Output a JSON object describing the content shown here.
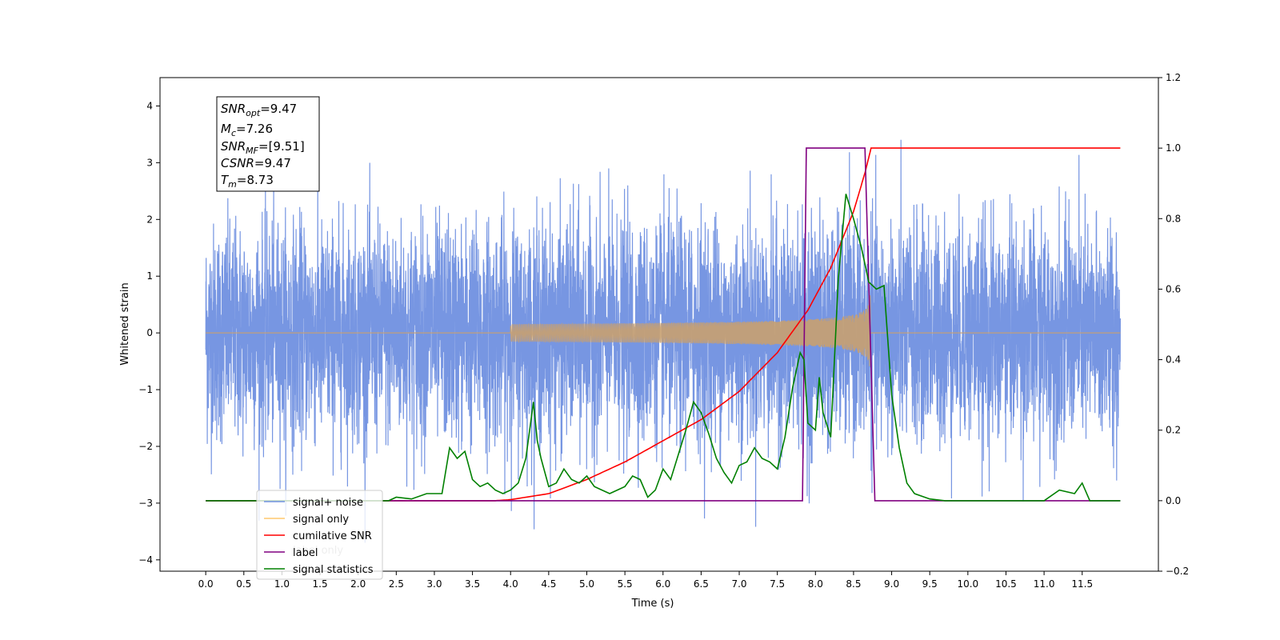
{
  "chart_data": {
    "type": "line",
    "xlabel": "Time (s)",
    "ylabel": "Whitened strain",
    "xlim": [
      -0.6,
      12.5
    ],
    "ylim": [
      -4.2,
      4.5
    ],
    "y2lim": [
      -0.2,
      1.2
    ],
    "x_ticks": [
      "0.0",
      "0.5",
      "1.0",
      "1.5",
      "2.0",
      "2.5",
      "3.0",
      "3.5",
      "4.0",
      "4.5",
      "5.0",
      "5.5",
      "6.0",
      "6.5",
      "7.0",
      "7.5",
      "8.0",
      "8.5",
      "9.0",
      "9.5",
      "10.0",
      "10.5",
      "11.0",
      "11.5"
    ],
    "y_ticks": [
      "−4",
      "−3",
      "−2",
      "−1",
      "0",
      "1",
      "2",
      "3",
      "4"
    ],
    "y2_ticks": [
      "−0.2",
      "0.0",
      "0.2",
      "0.4",
      "0.6",
      "0.8",
      "1.0",
      "1.2"
    ],
    "legend_position": "lower-left",
    "legend": [
      {
        "label": "signal+ noise",
        "color": "#7090e0"
      },
      {
        "label": "signal only",
        "color": "#ffc86e"
      },
      {
        "label": "cumilative SNR",
        "color": "#ff0000"
      },
      {
        "label": "label",
        "color": "#800080"
      },
      {
        "label": "signal statistics",
        "color": "#008000"
      }
    ],
    "hidden_label": "label only",
    "annotation": [
      {
        "main": "SNR",
        "sub": "opt",
        "rest": "=9.47"
      },
      {
        "main": "M",
        "sub": "c",
        "rest": "=7.26"
      },
      {
        "main": "SNR",
        "sub": "MF",
        "rest": "=[9.51]"
      },
      {
        "main": "CSNR",
        "sub": "",
        "rest": "=9.47"
      },
      {
        "main": "T",
        "sub": "m",
        "rest": "=8.73"
      }
    ],
    "series": [
      {
        "name": "signal+ noise",
        "axis": "left",
        "color": "#7090e0",
        "x_range": [
          0.0,
          12.0
        ],
        "noise_std": 1.0,
        "approx_max": 3.9,
        "approx_min": -3.7
      },
      {
        "name": "signal only",
        "axis": "left",
        "color": "#c8a070",
        "chirp_start": 4.0,
        "merger": 8.73,
        "peak_amplitude": 0.8
      },
      {
        "name": "cumilative SNR",
        "axis": "right",
        "color": "#ff0000",
        "x": [
          0.0,
          3.5,
          3.8,
          4.0,
          4.5,
          5.0,
          5.5,
          6.0,
          6.5,
          7.0,
          7.5,
          7.9,
          8.2,
          8.5,
          8.65,
          8.73,
          12.0
        ],
        "y": [
          0.0,
          0.0,
          0.0,
          0.003,
          0.02,
          0.06,
          0.11,
          0.17,
          0.23,
          0.31,
          0.42,
          0.54,
          0.66,
          0.82,
          0.93,
          1.0,
          1.0
        ]
      },
      {
        "name": "label",
        "axis": "right",
        "color": "#800080",
        "x": [
          0.0,
          7.83,
          7.88,
          8.65,
          8.78,
          12.0
        ],
        "y": [
          0.0,
          0.0,
          1.0,
          1.0,
          0.0,
          0.0
        ]
      },
      {
        "name": "signal statistics",
        "axis": "right",
        "color": "#008000",
        "x": [
          0.0,
          2.4,
          2.5,
          2.7,
          2.9,
          3.1,
          3.2,
          3.3,
          3.4,
          3.5,
          3.6,
          3.7,
          3.8,
          3.9,
          4.0,
          4.1,
          4.2,
          4.3,
          4.35,
          4.4,
          4.5,
          4.6,
          4.7,
          4.8,
          4.9,
          5.0,
          5.1,
          5.2,
          5.3,
          5.4,
          5.5,
          5.6,
          5.7,
          5.8,
          5.9,
          6.0,
          6.1,
          6.2,
          6.3,
          6.4,
          6.5,
          6.6,
          6.7,
          6.8,
          6.9,
          7.0,
          7.1,
          7.2,
          7.3,
          7.4,
          7.5,
          7.6,
          7.7,
          7.8,
          7.85,
          7.9,
          8.0,
          8.05,
          8.1,
          8.2,
          8.3,
          8.4,
          8.5,
          8.6,
          8.7,
          8.8,
          8.9,
          9.0,
          9.1,
          9.2,
          9.3,
          9.5,
          9.7,
          10.0,
          11.0,
          11.2,
          11.4,
          11.5,
          11.6,
          11.8,
          12.0
        ],
        "y": [
          0.0,
          0.0,
          0.01,
          0.005,
          0.02,
          0.02,
          0.15,
          0.12,
          0.14,
          0.06,
          0.04,
          0.05,
          0.03,
          0.02,
          0.03,
          0.05,
          0.12,
          0.28,
          0.17,
          0.12,
          0.04,
          0.05,
          0.09,
          0.06,
          0.05,
          0.07,
          0.04,
          0.03,
          0.02,
          0.03,
          0.04,
          0.07,
          0.06,
          0.01,
          0.03,
          0.09,
          0.06,
          0.13,
          0.2,
          0.28,
          0.25,
          0.19,
          0.12,
          0.08,
          0.05,
          0.1,
          0.11,
          0.15,
          0.12,
          0.11,
          0.09,
          0.18,
          0.32,
          0.42,
          0.4,
          0.22,
          0.2,
          0.35,
          0.25,
          0.18,
          0.63,
          0.87,
          0.8,
          0.72,
          0.62,
          0.6,
          0.61,
          0.3,
          0.15,
          0.05,
          0.02,
          0.005,
          0.0,
          0.0,
          0.0,
          0.03,
          0.02,
          0.05,
          0.0,
          0.0,
          0.0
        ]
      }
    ]
  }
}
